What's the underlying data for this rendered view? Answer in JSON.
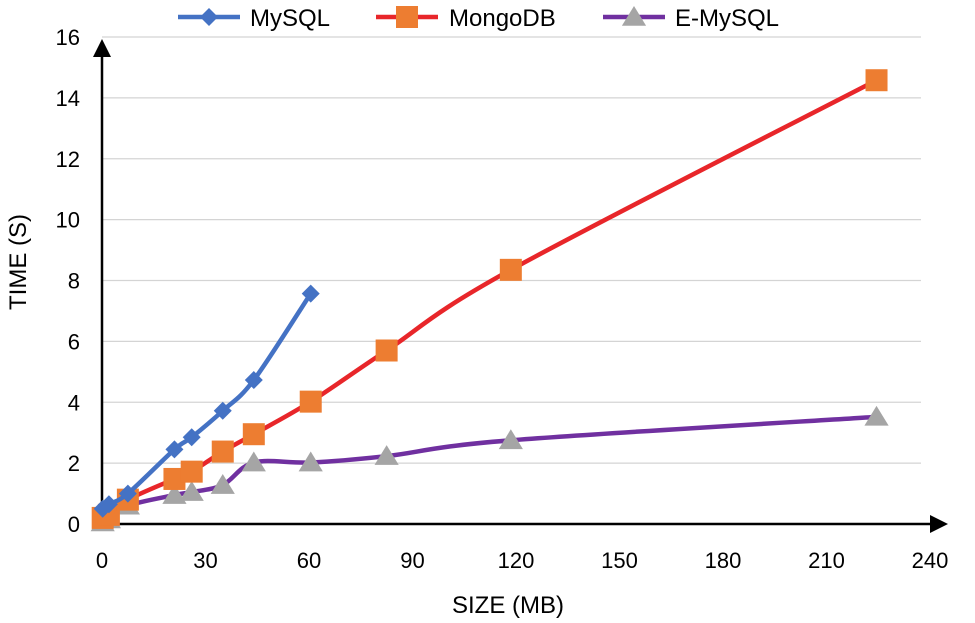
{
  "chart_data": {
    "type": "line",
    "xlabel": "SIZE (MB)",
    "ylabel": "TIME (S)",
    "xlim": [
      0,
      240
    ],
    "ylim": [
      0,
      16
    ],
    "x_ticks": [
      "0",
      "30",
      "60",
      "90",
      "120",
      "150",
      "180",
      "210",
      "240"
    ],
    "y_ticks": [
      "0",
      "2",
      "4",
      "6",
      "8",
      "10",
      "12",
      "14",
      "16"
    ],
    "grid": "horizontal",
    "legend_position": "top",
    "series": [
      {
        "name": "MySQL",
        "color": "#4472C4",
        "marker": "diamond",
        "points": [
          [
            0.2,
            0.5
          ],
          [
            2,
            0.65
          ],
          [
            7.5,
            1.0
          ],
          [
            21,
            2.45
          ],
          [
            26,
            2.85
          ],
          [
            35,
            3.72
          ],
          [
            44,
            4.73
          ],
          [
            60.5,
            7.57
          ]
        ]
      },
      {
        "name": "MongoDB",
        "color": "#ED7D31",
        "line_color": "#E8262A",
        "marker": "square",
        "points": [
          [
            0.2,
            0.2
          ],
          [
            2,
            0.3
          ],
          [
            7.5,
            0.8
          ],
          [
            21,
            1.48
          ],
          [
            26,
            1.72
          ],
          [
            35,
            2.38
          ],
          [
            44,
            2.95
          ],
          [
            60.5,
            4.02
          ],
          [
            82.5,
            5.7
          ],
          [
            118.5,
            8.35
          ],
          [
            224.5,
            14.58
          ]
        ]
      },
      {
        "name": "E-MySQL",
        "color": "#A5A5A5",
        "line_color": "#7030A0",
        "marker": "triangle",
        "points": [
          [
            0.2,
            0.05
          ],
          [
            2,
            0.15
          ],
          [
            7.5,
            0.6
          ],
          [
            21,
            0.95
          ],
          [
            26,
            1.05
          ],
          [
            35,
            1.28
          ],
          [
            44,
            2.02
          ],
          [
            60.5,
            2.02
          ],
          [
            82.5,
            2.23
          ],
          [
            118.5,
            2.75
          ],
          [
            224.5,
            3.52
          ]
        ]
      }
    ]
  }
}
